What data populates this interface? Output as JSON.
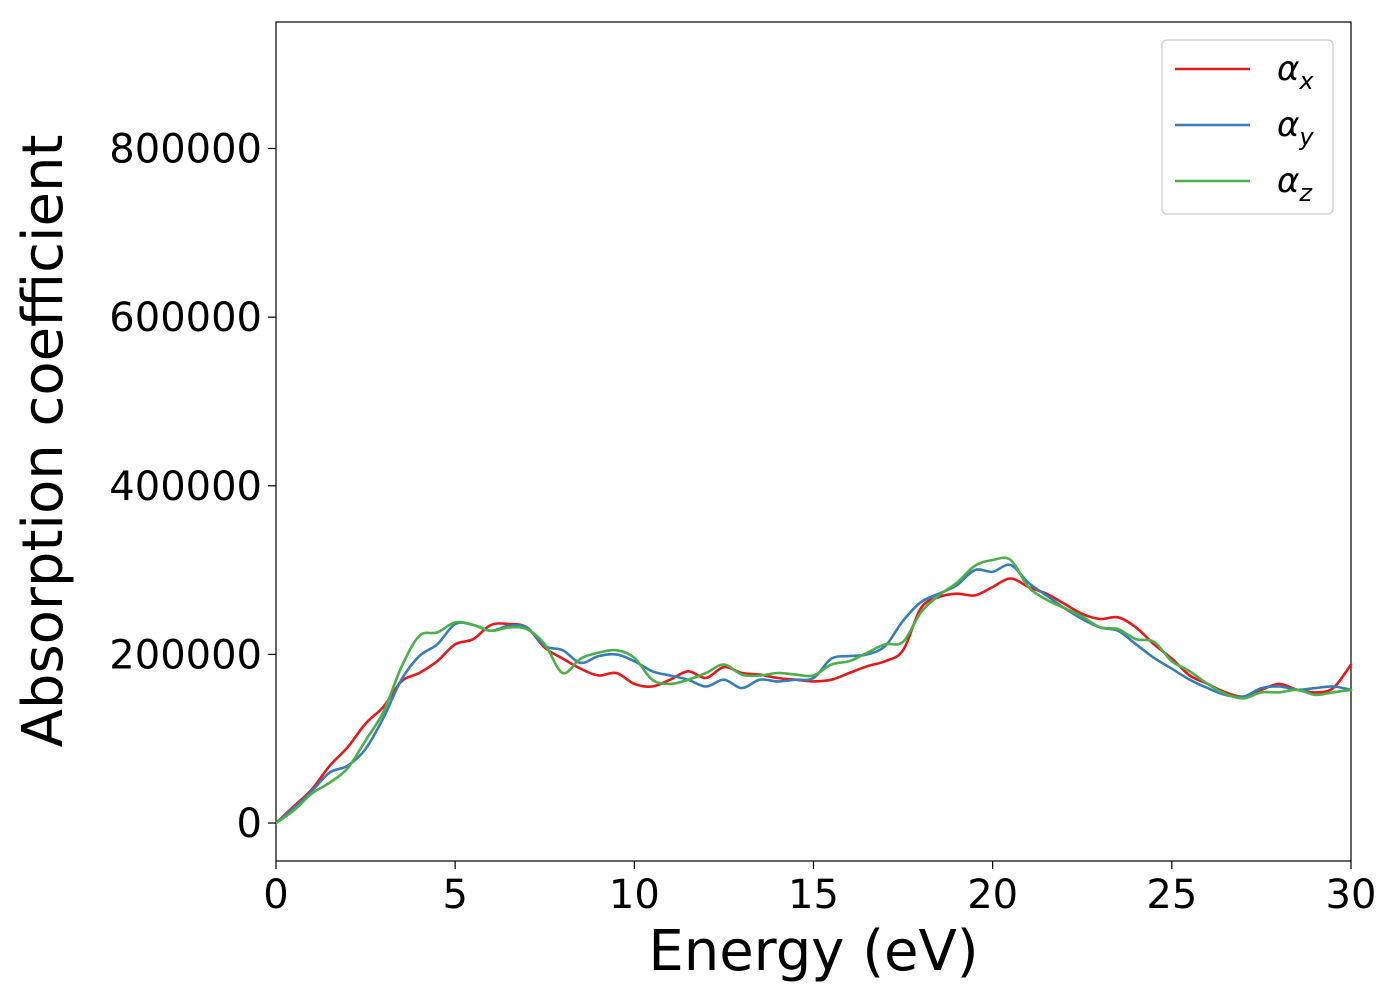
{
  "chart_data": {
    "type": "line",
    "title": "",
    "xlabel": "Energy (eV)",
    "ylabel": "Absorption coefficient",
    "xlim": [
      0,
      30
    ],
    "ylim": [
      -45000,
      950000
    ],
    "xticks": [
      0,
      5,
      10,
      15,
      20,
      25,
      30
    ],
    "yticks": [
      0,
      200000,
      400000,
      600000,
      800000
    ],
    "grid": false,
    "legend_position": "top-right",
    "x": [
      0,
      0.5,
      1,
      1.5,
      2,
      2.5,
      3,
      3.5,
      4,
      4.5,
      5,
      5.5,
      6,
      6.5,
      7,
      7.5,
      8,
      8.5,
      9,
      9.5,
      10,
      10.5,
      11,
      11.5,
      12,
      12.5,
      13,
      13.5,
      14,
      14.5,
      15,
      15.5,
      16,
      16.5,
      17,
      17.5,
      18,
      18.5,
      19,
      19.5,
      20,
      20.5,
      21,
      21.5,
      22,
      22.5,
      23,
      23.5,
      24,
      24.5,
      25,
      25.5,
      26,
      26.5,
      27,
      27.5,
      28,
      28.5,
      29,
      29.5,
      30
    ],
    "series": [
      {
        "name": "α",
        "subscript": "x",
        "color": "#e41a1c",
        "values": [
          0,
          20000,
          40000,
          68000,
          90000,
          118000,
          138000,
          168000,
          178000,
          192000,
          212000,
          218000,
          235000,
          236000,
          232000,
          208000,
          195000,
          183000,
          175000,
          178000,
          165000,
          162000,
          170000,
          180000,
          172000,
          185000,
          178000,
          176000,
          172000,
          170000,
          168000,
          170000,
          178000,
          186000,
          192000,
          205000,
          255000,
          268000,
          272000,
          270000,
          280000,
          290000,
          280000,
          272000,
          260000,
          248000,
          242000,
          244000,
          232000,
          212000,
          195000,
          175000,
          165000,
          155000,
          150000,
          158000,
          165000,
          158000,
          155000,
          160000,
          188000
        ]
      },
      {
        "name": "α",
        "subscript": "y",
        "color": "#377eb8",
        "values": [
          0,
          18000,
          38000,
          60000,
          68000,
          88000,
          125000,
          170000,
          198000,
          212000,
          236000,
          235000,
          228000,
          234000,
          232000,
          210000,
          205000,
          190000,
          198000,
          200000,
          192000,
          180000,
          175000,
          170000,
          162000,
          170000,
          160000,
          170000,
          168000,
          170000,
          172000,
          195000,
          198000,
          200000,
          210000,
          240000,
          262000,
          272000,
          282000,
          300000,
          298000,
          306000,
          285000,
          270000,
          255000,
          242000,
          232000,
          228000,
          212000,
          196000,
          183000,
          170000,
          160000,
          152000,
          150000,
          160000,
          162000,
          158000,
          160000,
          162000,
          158000
        ]
      },
      {
        "name": "α",
        "subscript": "z",
        "color": "#4daf4a",
        "values": [
          0,
          15000,
          35000,
          48000,
          65000,
          98000,
          132000,
          185000,
          222000,
          226000,
          238000,
          235000,
          228000,
          232000,
          230000,
          212000,
          178000,
          195000,
          202000,
          205000,
          196000,
          170000,
          165000,
          170000,
          178000,
          188000,
          176000,
          175000,
          178000,
          176000,
          175000,
          188000,
          192000,
          202000,
          212000,
          215000,
          250000,
          270000,
          285000,
          305000,
          312000,
          312000,
          280000,
          265000,
          255000,
          245000,
          232000,
          230000,
          218000,
          215000,
          192000,
          180000,
          165000,
          153000,
          148000,
          155000,
          155000,
          158000,
          152000,
          155000,
          158000
        ]
      }
    ]
  }
}
